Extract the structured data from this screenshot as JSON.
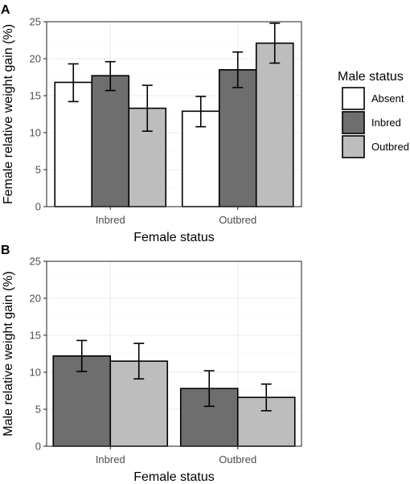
{
  "chart_data": [
    {
      "type": "bar",
      "panel_label": "A",
      "categories": [
        "Inbred",
        "Outbred"
      ],
      "xlabel": "Female status",
      "ylabel": "Female relative weight gain (%)",
      "ylim": [
        0,
        25
      ],
      "yticks": [
        "0",
        "5",
        "10",
        "15",
        "20",
        "25"
      ],
      "grid": true,
      "series": [
        {
          "name": "Absent",
          "color": "#ffffff",
          "values": [
            16.8,
            12.9
          ],
          "err_low": [
            14.2,
            10.8
          ],
          "err_high": [
            19.3,
            14.9
          ]
        },
        {
          "name": "Inbred",
          "color": "#6e6e6e",
          "values": [
            17.7,
            18.5
          ],
          "err_low": [
            15.7,
            16.1
          ],
          "err_high": [
            19.6,
            20.9
          ]
        },
        {
          "name": "Outbred",
          "color": "#bdbdbd",
          "values": [
            13.3,
            22.1
          ],
          "err_low": [
            10.2,
            19.4
          ],
          "err_high": [
            16.4,
            24.8
          ]
        }
      ],
      "legend": {
        "title": "Male status",
        "position": "right"
      }
    },
    {
      "type": "bar",
      "panel_label": "B",
      "categories": [
        "Inbred",
        "Outbred"
      ],
      "xlabel": "Female status",
      "ylabel": "Male relative weight gain (%)",
      "ylim": [
        0,
        25
      ],
      "yticks": [
        "0",
        "5",
        "10",
        "15",
        "20",
        "25"
      ],
      "grid": true,
      "series": [
        {
          "name": "Inbred",
          "color": "#6e6e6e",
          "values": [
            12.2,
            7.8
          ],
          "err_low": [
            10.1,
            5.4
          ],
          "err_high": [
            14.3,
            10.2
          ]
        },
        {
          "name": "Outbred",
          "color": "#bdbdbd",
          "values": [
            11.5,
            6.6
          ],
          "err_low": [
            9.1,
            4.8
          ],
          "err_high": [
            13.9,
            8.4
          ]
        }
      ]
    }
  ]
}
